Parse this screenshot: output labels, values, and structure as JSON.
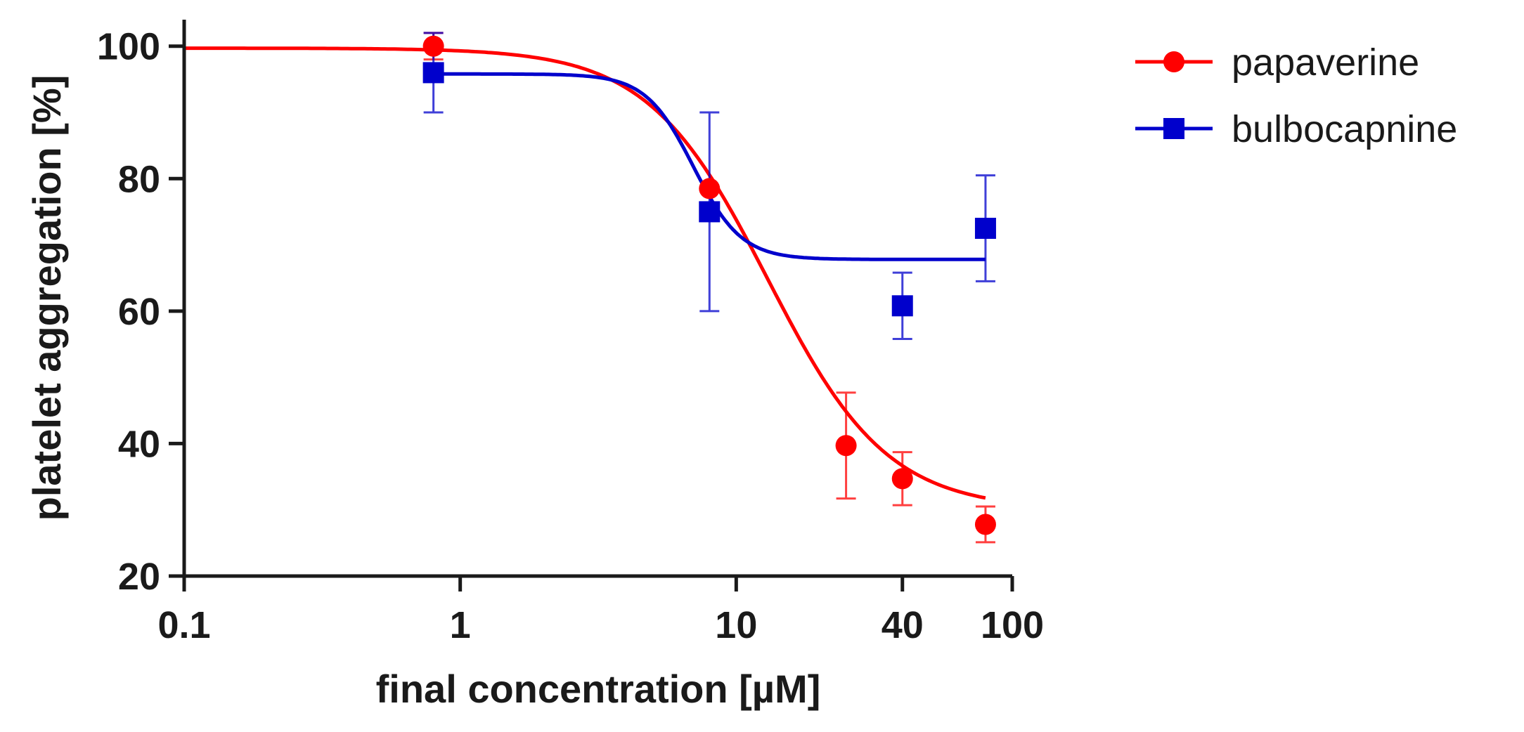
{
  "chart_data": {
    "type": "scatter",
    "title": "",
    "xlabel": "final concentration [µM]",
    "ylabel": "platelet aggregation [%]",
    "xscale": "log",
    "xlim": [
      0.1,
      100
    ],
    "ylim": [
      20,
      104
    ],
    "xticks": [
      {
        "value": 0.1,
        "label": "0.1"
      },
      {
        "value": 1,
        "label": "1"
      },
      {
        "value": 10,
        "label": "10"
      },
      {
        "value": 40,
        "label": "40"
      },
      {
        "value": 100,
        "label": "100"
      }
    ],
    "yticks": [
      {
        "value": 20,
        "label": "20"
      },
      {
        "value": 40,
        "label": "40"
      },
      {
        "value": 60,
        "label": "60"
      },
      {
        "value": 80,
        "label": "80"
      },
      {
        "value": 100,
        "label": "100"
      }
    ],
    "grid": false,
    "legend_position": "top-right (outside plot)",
    "series": [
      {
        "name": "papaverine",
        "color": "#ff0000",
        "marker": "circle",
        "x": [
          0.8,
          8,
          25,
          40,
          80
        ],
        "y": [
          100,
          78.5,
          39.7,
          34.7,
          27.8
        ],
        "err": [
          2,
          0,
          8,
          4,
          2.7
        ],
        "fit": {
          "model": "sigmoidal-dose-response",
          "top": 99.7,
          "bottom": 30.0,
          "ec50": 13,
          "hill": 2.0,
          "range": [
            0.1,
            80
          ]
        }
      },
      {
        "name": "bulbocapnine",
        "color": "#0000cc",
        "marker": "square",
        "x": [
          0.8,
          8,
          40,
          80
        ],
        "y": [
          96,
          75,
          60.8,
          72.5
        ],
        "err": [
          6,
          15,
          5,
          8
        ],
        "fit": {
          "model": "sigmoidal-dose-response",
          "top": 95.8,
          "bottom": 67.8,
          "ec50": 7,
          "hill": 5.0,
          "range": [
            0.8,
            80
          ]
        }
      }
    ]
  }
}
